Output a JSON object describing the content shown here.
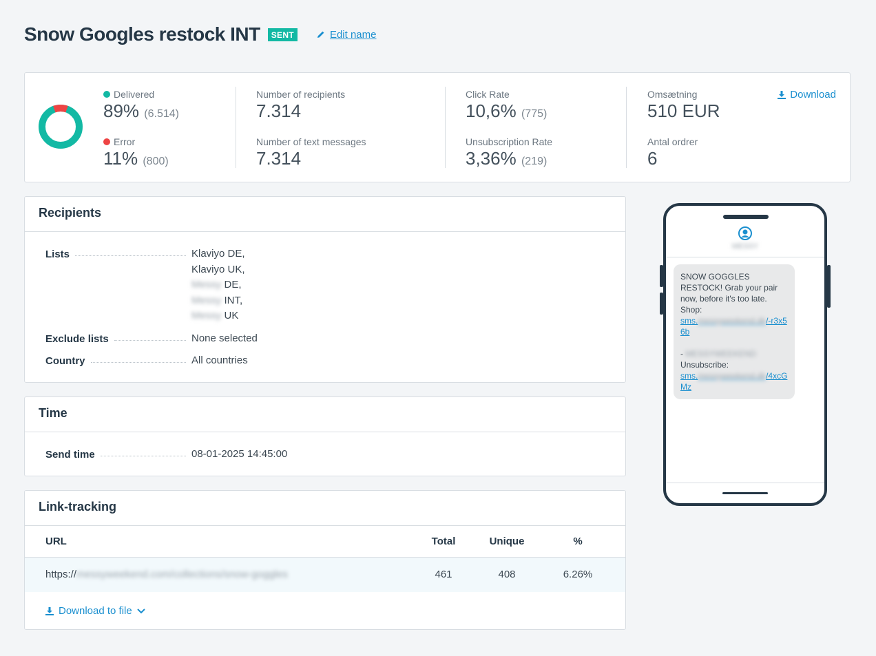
{
  "header": {
    "title": "Snow Googles restock INT",
    "badge": "SENT",
    "edit_label": "Edit name"
  },
  "stats": {
    "delivered": {
      "label": "Delivered",
      "percent": "89%",
      "count": "(6.514)",
      "color": "#13b9a4"
    },
    "error": {
      "label": "Error",
      "percent": "11%",
      "count": "(800)",
      "color": "#ee4444"
    },
    "recipients_label": "Number of recipients",
    "recipients_value": "7.314",
    "texts_label": "Number of text messages",
    "texts_value": "7.314",
    "click_label": "Click Rate",
    "click_value": "10,6%",
    "click_count": "(775)",
    "unsub_label": "Unsubscription Rate",
    "unsub_value": "3,36%",
    "unsub_count": "(219)",
    "revenue_label": "Omsætning",
    "revenue_value": "510 EUR",
    "orders_label": "Antal ordrer",
    "orders_value": "6",
    "download_label": "Download"
  },
  "donut": {
    "delivered_fraction": 0.89,
    "error_fraction": 0.11
  },
  "recipients": {
    "title": "Recipients",
    "lists_label": "Lists",
    "lists": [
      {
        "prefix": "",
        "blur": "",
        "suffix": "Klaviyo DE,"
      },
      {
        "prefix": "",
        "blur": "",
        "suffix": "Klaviyo UK,"
      },
      {
        "prefix": "",
        "blur": "Messy",
        "suffix": " DE,"
      },
      {
        "prefix": "",
        "blur": "Messy",
        "suffix": " INT,"
      },
      {
        "prefix": "",
        "blur": "Messy",
        "suffix": " UK"
      }
    ],
    "exclude_label": "Exclude lists",
    "exclude_value": "None selected",
    "country_label": "Country",
    "country_value": "All countries"
  },
  "time": {
    "title": "Time",
    "send_label": "Send time",
    "send_value": "08-01-2025 14:45:00"
  },
  "link_tracking": {
    "title": "Link-tracking",
    "columns": {
      "url": "URL",
      "total": "Total",
      "unique": "Unique",
      "percent": "%"
    },
    "rows": [
      {
        "url_prefix": "https://",
        "url_blur": "messyweekend.com/collections/snow-goggles",
        "total": "461",
        "unique": "408",
        "percent": "6.26%"
      }
    ],
    "download_label": "Download to file"
  },
  "phone": {
    "sender": "MESSY",
    "message_text": "SNOW GOGGLES RESTOCK! Grab your pair now, before it's too late. Shop:",
    "link1_prefix": "sms.",
    "link1_blur": "messyweekend.dk",
    "link1_suffix": "/-r3x56b",
    "sender_line_prefix": "- ",
    "sender_line_blur": "MESSYWEEKEND",
    "unsub_label": "Unsubscribe:",
    "link2_prefix": "sms.",
    "link2_blur": "messyweekend.dk",
    "link2_suffix": "/4xcGMz"
  }
}
